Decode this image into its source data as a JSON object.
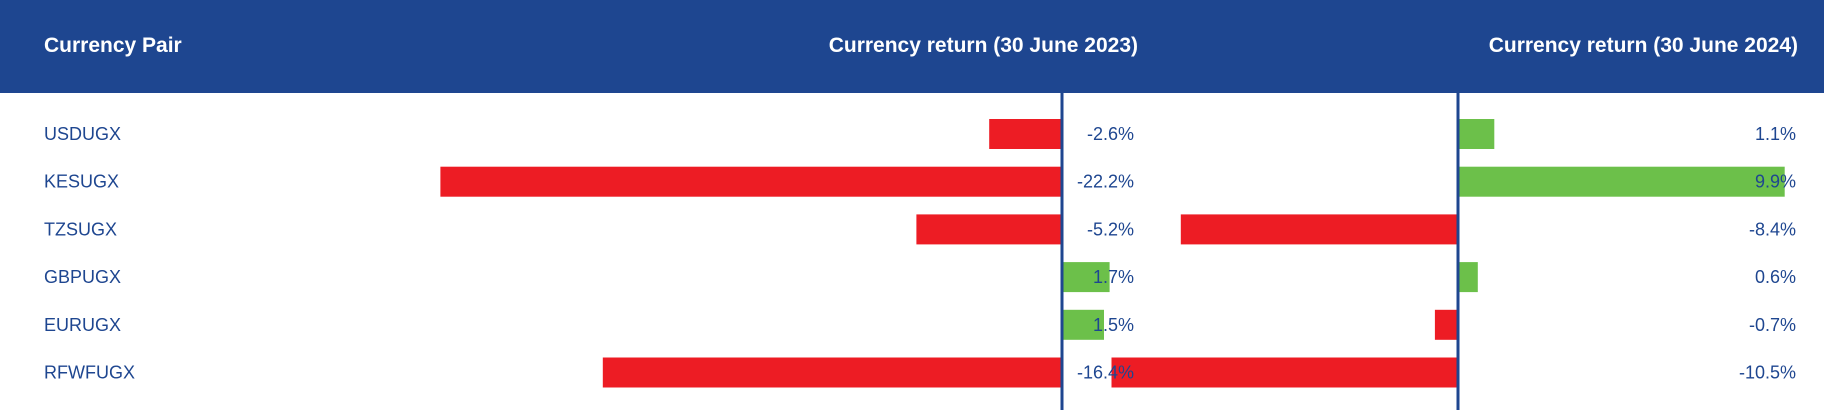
{
  "header": {
    "col_pair": "Currency Pair",
    "col_2023": "Currency return (30 June 2023)",
    "col_2024": "Currency return (30 June 2024)"
  },
  "colors": {
    "header_bg": "#1e4690",
    "text": "#1e4690",
    "negative": "#ed1c24",
    "positive": "#6cc04a",
    "axis": "#1e4690"
  },
  "chart_data": {
    "type": "bar",
    "categories": [
      "USDUGX",
      "KESUGX",
      "TZSUGX",
      "GBPUGX",
      "EURUGX",
      "RFWFUGX"
    ],
    "series": [
      {
        "name": "Currency return (30 June 2023)",
        "values": [
          -2.6,
          -22.2,
          -5.2,
          1.7,
          1.5,
          -16.4
        ],
        "labels": [
          "-2.6%",
          "-22.2%",
          "-5.2%",
          "1.7%",
          "1.5%",
          "-16.4%"
        ]
      },
      {
        "name": "Currency return (30 June 2024)",
        "values": [
          1.1,
          9.9,
          -8.4,
          0.6,
          -0.7,
          -10.5
        ],
        "labels": [
          "1.1%",
          "9.9%",
          "-8.4%",
          "0.6%",
          "-0.7%",
          "-10.5%"
        ]
      }
    ],
    "value_unit": "%"
  }
}
